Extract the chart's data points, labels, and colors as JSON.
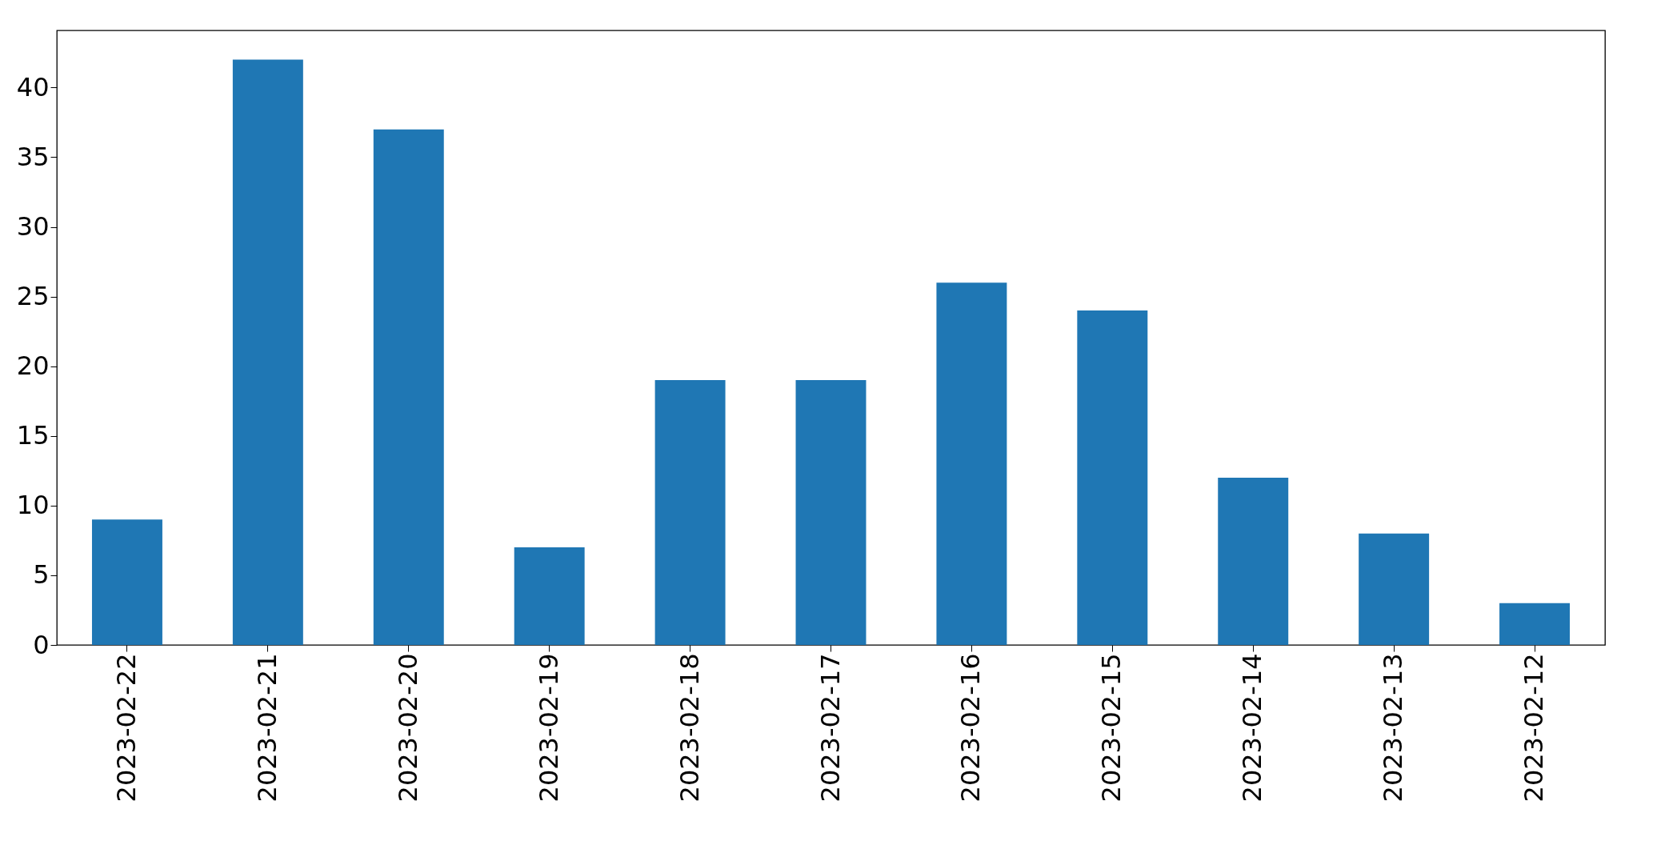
{
  "chart_data": {
    "type": "bar",
    "categories": [
      "2023-02-22",
      "2023-02-21",
      "2023-02-20",
      "2023-02-19",
      "2023-02-18",
      "2023-02-17",
      "2023-02-16",
      "2023-02-15",
      "2023-02-14",
      "2023-02-13",
      "2023-02-12"
    ],
    "values": [
      9,
      42,
      37,
      7,
      19,
      19,
      26,
      24,
      12,
      8,
      3
    ],
    "color": "#1f77b4",
    "ylim": [
      0,
      44.1
    ],
    "yticks": [
      0,
      5,
      10,
      15,
      20,
      25,
      30,
      35,
      40
    ],
    "grid": false
  }
}
